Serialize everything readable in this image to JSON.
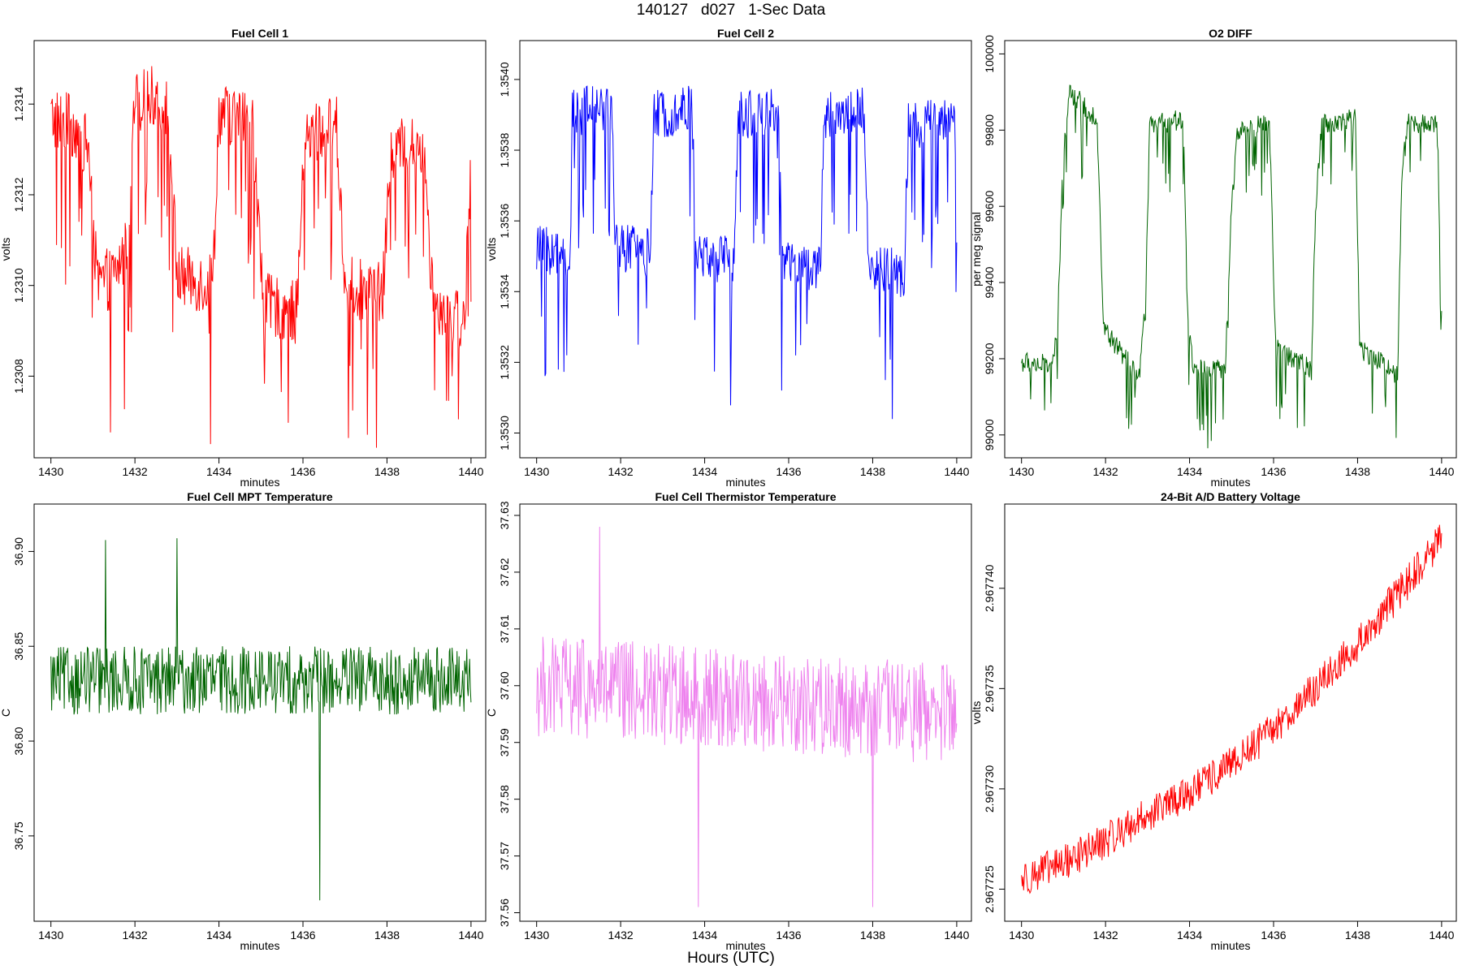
{
  "figure": {
    "title": "140127   d027   1-Sec Data",
    "xlabel": "Hours (UTC)"
  },
  "chart_data": [
    {
      "type": "line",
      "title": "Fuel Cell 1",
      "xlabel": "minutes",
      "ylabel": "volts",
      "color": "#ff0000",
      "xlim": [
        1429.6,
        1440.35
      ],
      "ylim": [
        1.23062,
        1.23154
      ],
      "xticks": [
        1430,
        1432,
        1434,
        1436,
        1438,
        1440
      ],
      "yticks": [
        1.2308,
        1.231,
        1.2312,
        1.2314
      ],
      "ytick_labels": [
        "1.2308",
        "1.2310",
        "1.2312",
        "1.2314"
      ],
      "noise": 7e-05,
      "dips": 0.00028,
      "dip_prob": 0.42,
      "segments": [
        {
          "x": 1430.0,
          "y": 1.23137
        },
        {
          "x": 1430.55,
          "y": 1.23135
        },
        {
          "x": 1430.9,
          "y": 1.2313
        },
        {
          "x": 1431.1,
          "y": 1.231
        },
        {
          "x": 1431.5,
          "y": 1.23102
        },
        {
          "x": 1431.8,
          "y": 1.23108
        },
        {
          "x": 1432.0,
          "y": 1.2314
        },
        {
          "x": 1432.5,
          "y": 1.23142
        },
        {
          "x": 1432.8,
          "y": 1.23138
        },
        {
          "x": 1433.0,
          "y": 1.23102
        },
        {
          "x": 1433.5,
          "y": 1.23101
        },
        {
          "x": 1433.85,
          "y": 1.231
        },
        {
          "x": 1434.0,
          "y": 1.23138
        },
        {
          "x": 1434.8,
          "y": 1.23136
        },
        {
          "x": 1435.05,
          "y": 1.23096
        },
        {
          "x": 1435.85,
          "y": 1.23094
        },
        {
          "x": 1436.05,
          "y": 1.23133
        },
        {
          "x": 1436.8,
          "y": 1.23135
        },
        {
          "x": 1437.0,
          "y": 1.231
        },
        {
          "x": 1437.9,
          "y": 1.23098
        },
        {
          "x": 1438.1,
          "y": 1.2313
        },
        {
          "x": 1438.9,
          "y": 1.23131
        },
        {
          "x": 1439.1,
          "y": 1.23097
        },
        {
          "x": 1439.85,
          "y": 1.23092
        },
        {
          "x": 1440.0,
          "y": 1.2313
        }
      ]
    },
    {
      "type": "line",
      "title": "Fuel Cell 2",
      "xlabel": "minutes",
      "ylabel": "volts",
      "color": "#0000ff",
      "xlim": [
        1429.6,
        1440.35
      ],
      "ylim": [
        1.35293,
        1.35411
      ],
      "xticks": [
        1430,
        1432,
        1434,
        1436,
        1438,
        1440
      ],
      "yticks": [
        1.353,
        1.3532,
        1.3534,
        1.3536,
        1.3538,
        1.354
      ],
      "ytick_labels": [
        "1.3530",
        "1.3532",
        "1.3534",
        "1.3536",
        "1.3538",
        "1.3540"
      ],
      "noise": 7e-05,
      "dips": 0.00032,
      "dip_prob": 0.45,
      "segments": [
        {
          "x": 1430.0,
          "y": 1.35352
        },
        {
          "x": 1430.65,
          "y": 1.3535
        },
        {
          "x": 1430.8,
          "y": 1.3535
        },
        {
          "x": 1430.85,
          "y": 1.3539
        },
        {
          "x": 1431.8,
          "y": 1.35393
        },
        {
          "x": 1431.85,
          "y": 1.35353
        },
        {
          "x": 1432.7,
          "y": 1.35351
        },
        {
          "x": 1432.8,
          "y": 1.3539
        },
        {
          "x": 1433.7,
          "y": 1.35392
        },
        {
          "x": 1433.8,
          "y": 1.3535
        },
        {
          "x": 1434.7,
          "y": 1.35349
        },
        {
          "x": 1434.8,
          "y": 1.3539
        },
        {
          "x": 1435.75,
          "y": 1.35391
        },
        {
          "x": 1435.85,
          "y": 1.35348
        },
        {
          "x": 1436.75,
          "y": 1.35346
        },
        {
          "x": 1436.85,
          "y": 1.3539
        },
        {
          "x": 1437.8,
          "y": 1.35391
        },
        {
          "x": 1437.9,
          "y": 1.35347
        },
        {
          "x": 1438.75,
          "y": 1.35345
        },
        {
          "x": 1438.85,
          "y": 1.35387
        },
        {
          "x": 1439.95,
          "y": 1.35388
        },
        {
          "x": 1440.0,
          "y": 1.35356
        }
      ]
    },
    {
      "type": "line",
      "title": "O2 DIFF",
      "xlabel": "minutes",
      "ylabel": "per meg signal",
      "color": "#006400",
      "xlim": [
        1429.6,
        1440.35
      ],
      "ylim": [
        98940,
        100035
      ],
      "xticks": [
        1430,
        1432,
        1434,
        1436,
        1438,
        1440
      ],
      "yticks": [
        99000,
        99200,
        99400,
        99600,
        99800,
        100000
      ],
      "ytick_labels": [
        "99000",
        "99200",
        "99400",
        "99600",
        "99800",
        "100000"
      ],
      "noise": 28,
      "dips": 150,
      "dip_prob": 0.45,
      "segments": [
        {
          "x": 1430.0,
          "y": 99190
        },
        {
          "x": 1430.7,
          "y": 99185
        },
        {
          "x": 1430.85,
          "y": 99250
        },
        {
          "x": 1431.0,
          "y": 99760
        },
        {
          "x": 1431.15,
          "y": 99900
        },
        {
          "x": 1431.8,
          "y": 99830
        },
        {
          "x": 1431.95,
          "y": 99280
        },
        {
          "x": 1432.8,
          "y": 99150
        },
        {
          "x": 1432.95,
          "y": 99330
        },
        {
          "x": 1433.05,
          "y": 99810
        },
        {
          "x": 1433.85,
          "y": 99830
        },
        {
          "x": 1433.95,
          "y": 99320
        },
        {
          "x": 1434.1,
          "y": 99170
        },
        {
          "x": 1434.85,
          "y": 99170
        },
        {
          "x": 1435.0,
          "y": 99600
        },
        {
          "x": 1435.15,
          "y": 99800
        },
        {
          "x": 1435.9,
          "y": 99820
        },
        {
          "x": 1436.05,
          "y": 99230
        },
        {
          "x": 1436.9,
          "y": 99170
        },
        {
          "x": 1437.0,
          "y": 99600
        },
        {
          "x": 1437.15,
          "y": 99820
        },
        {
          "x": 1437.95,
          "y": 99830
        },
        {
          "x": 1438.05,
          "y": 99230
        },
        {
          "x": 1438.95,
          "y": 99160
        },
        {
          "x": 1439.05,
          "y": 99680
        },
        {
          "x": 1439.2,
          "y": 99820
        },
        {
          "x": 1439.9,
          "y": 99820
        },
        {
          "x": 1440.0,
          "y": 99300
        }
      ]
    },
    {
      "type": "line",
      "title": "Fuel Cell MPT Temperature",
      "xlabel": "minutes",
      "ylabel": "C",
      "color": "#006400",
      "xlim": [
        1429.6,
        1440.35
      ],
      "ylim": [
        36.705,
        36.925
      ],
      "xticks": [
        1430,
        1432,
        1434,
        1436,
        1438,
        1440
      ],
      "yticks": [
        36.75,
        36.8,
        36.85,
        36.9
      ],
      "ytick_labels": [
        "36.75",
        "36.80",
        "36.85",
        "36.90"
      ],
      "noise": 0.018,
      "dips": 0,
      "dip_prob": 0,
      "spikes": [
        {
          "x": 1436.4,
          "y": 36.716
        },
        {
          "x": 1431.3,
          "y": 36.906
        },
        {
          "x": 1433.0,
          "y": 36.907
        }
      ],
      "segments": [
        {
          "x": 1430.0,
          "y": 36.832
        },
        {
          "x": 1440.0,
          "y": 36.832
        }
      ]
    },
    {
      "type": "line",
      "title": "Fuel Cell Thermistor Temperature",
      "xlabel": "minutes",
      "ylabel": "C",
      "color": "#ee82ee",
      "xlim": [
        1429.6,
        1440.35
      ],
      "ylim": [
        37.5585,
        37.632
      ],
      "xticks": [
        1430,
        1432,
        1434,
        1436,
        1438,
        1440
      ],
      "yticks": [
        37.56,
        37.57,
        37.58,
        37.59,
        37.6,
        37.61,
        37.62,
        37.63
      ],
      "ytick_labels": [
        "37.56",
        "37.57",
        "37.58",
        "37.59",
        "37.60",
        "37.61",
        "37.62",
        "37.63"
      ],
      "noise": 0.009,
      "dips": 0,
      "dip_prob": 0,
      "spikes": [
        {
          "x": 1431.5,
          "y": 37.628
        },
        {
          "x": 1433.85,
          "y": 37.561
        },
        {
          "x": 1438.0,
          "y": 37.561
        }
      ],
      "segments": [
        {
          "x": 1430.0,
          "y": 37.6
        },
        {
          "x": 1440.0,
          "y": 37.595
        }
      ]
    },
    {
      "type": "line",
      "title": "24-Bit A/D Battery Voltage",
      "xlabel": "minutes",
      "ylabel": "volts",
      "color": "#ff0000",
      "xlim": [
        1429.6,
        1440.35
      ],
      "ylim": [
        2.9677234,
        2.9677442
      ],
      "xticks": [
        1430,
        1432,
        1434,
        1436,
        1438,
        1440
      ],
      "yticks": [
        2.967725,
        2.96773,
        2.967735,
        2.96774
      ],
      "ytick_labels": [
        "2.967725",
        "2.967730",
        "2.967735",
        "2.967740"
      ],
      "noise": 9e-07,
      "dips": 0,
      "dip_prob": 0,
      "segments": [
        {
          "x": 1430.0,
          "y": 2.9677255
        },
        {
          "x": 1431.0,
          "y": 2.9677263
        },
        {
          "x": 1432.0,
          "y": 2.9677274
        },
        {
          "x": 1433.0,
          "y": 2.9677287
        },
        {
          "x": 1434.0,
          "y": 2.9677298
        },
        {
          "x": 1435.0,
          "y": 2.9677312
        },
        {
          "x": 1436.0,
          "y": 2.967733
        },
        {
          "x": 1437.0,
          "y": 2.967735
        },
        {
          "x": 1438.0,
          "y": 2.9677372
        },
        {
          "x": 1439.0,
          "y": 2.9677398
        },
        {
          "x": 1440.0,
          "y": 2.9677425
        }
      ]
    }
  ]
}
